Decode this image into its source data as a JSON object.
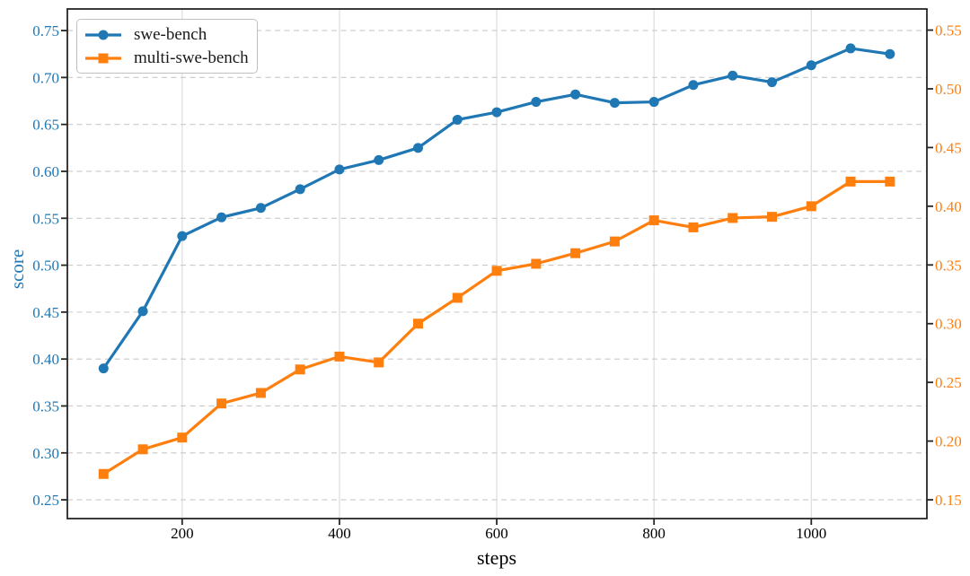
{
  "figure": {
    "background": "#ffffff"
  },
  "chart_data": {
    "type": "line",
    "title": "",
    "xlabel": "steps",
    "ylabel_left": "score",
    "x": [
      100,
      150,
      200,
      250,
      300,
      350,
      400,
      450,
      500,
      550,
      600,
      650,
      700,
      750,
      800,
      850,
      900,
      950,
      1000,
      1050,
      1100
    ],
    "series": [
      {
        "name": "swe-bench",
        "axis": "left",
        "color": "#1f77b4",
        "marker": "circle",
        "values": [
          0.39,
          0.451,
          0.531,
          0.551,
          0.561,
          0.581,
          0.602,
          0.612,
          0.625,
          0.655,
          0.663,
          0.674,
          0.682,
          0.673,
          0.674,
          0.692,
          0.702,
          0.695,
          0.713,
          0.731,
          0.725
        ]
      },
      {
        "name": "multi-swe-bench",
        "axis": "right",
        "color": "#ff7f0e",
        "marker": "square",
        "values": [
          0.172,
          0.193,
          0.203,
          0.232,
          0.241,
          0.261,
          0.272,
          0.267,
          0.3,
          0.322,
          0.345,
          0.351,
          0.36,
          0.37,
          0.388,
          0.382,
          0.39,
          0.391,
          0.4,
          0.421,
          0.421
        ]
      }
    ],
    "x_ticks": [
      200,
      400,
      600,
      800,
      1000
    ],
    "y_left_ticks": [
      0.25,
      0.3,
      0.35,
      0.4,
      0.45,
      0.5,
      0.55,
      0.6,
      0.65,
      0.7,
      0.75
    ],
    "y_right_ticks": [
      0.15,
      0.2,
      0.25,
      0.3,
      0.35,
      0.4,
      0.45,
      0.5,
      0.55
    ],
    "xlim": [
      54,
      1147
    ],
    "ylim_left": [
      0.23,
      0.773
    ],
    "ylim_right": [
      0.134,
      0.568
    ],
    "legend_position": "upper left",
    "grid": {
      "horizontal": "dashed",
      "vertical": "solid"
    },
    "style": {
      "left_tick_label_color": "#1f77b4",
      "right_tick_label_color": "#ff7f0e",
      "x_tick_label_color": "#000000",
      "spine_color": "#262626",
      "tick_color": "#262626",
      "hgrid_color": "#c9c9c9",
      "vgrid_color": "#dfdfdf",
      "line_width": 3.2
    }
  }
}
